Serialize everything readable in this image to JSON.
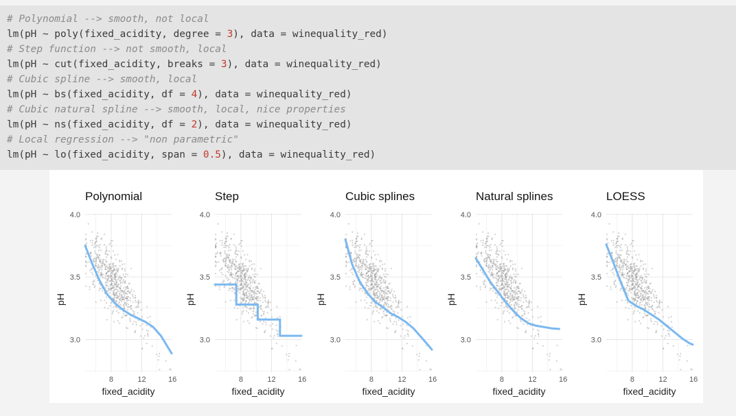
{
  "code_lines": [
    {
      "type": "comment",
      "parts": [
        "# Polynomial --> smooth, not local"
      ]
    },
    {
      "type": "code",
      "parts": [
        "lm(pH ~ poly(fixed_acidity, degree = ",
        "3",
        "), data = winequality_red)"
      ]
    },
    {
      "type": "comment",
      "parts": [
        "# Step function --> not smooth, local"
      ]
    },
    {
      "type": "code",
      "parts": [
        "lm(pH ~ cut(fixed_acidity, breaks = ",
        "3",
        "), data = winequality_red)"
      ]
    },
    {
      "type": "comment",
      "parts": [
        "# Cubic spline --> smooth, local"
      ]
    },
    {
      "type": "code",
      "parts": [
        "lm(pH ~ bs(fixed_acidity, df = ",
        "4",
        "), data = winequality_red)"
      ]
    },
    {
      "type": "comment",
      "parts": [
        "# Cubic natural spline --> smooth, local, nice properties"
      ]
    },
    {
      "type": "code",
      "parts": [
        "lm(pH ~ ns(fixed_acidity, df = ",
        "2",
        "), data = winequality_red)"
      ]
    },
    {
      "type": "comment",
      "parts": [
        "# Local regression --> \"non parametric\""
      ]
    },
    {
      "type": "code",
      "parts": [
        "lm(pH ~ lo(fixed_acidity, span = ",
        "0.5",
        "), data = winequality_red)"
      ]
    }
  ],
  "colors": {
    "fit_line": "#7ab8f0",
    "points": "#9a9a9a",
    "grid": "#e6e6e6",
    "code_bg": "#e4e4e4"
  },
  "chart_data": [
    {
      "type": "scatter",
      "title": "Polynomial",
      "xlabel": "fixed_acidity",
      "ylabel": "pH",
      "xlim": [
        4.6,
        15.9
      ],
      "ylim": [
        2.74,
        4.01
      ],
      "xticks": [
        "8",
        "12",
        "16"
      ],
      "yticks": [
        "3.0",
        "3.5",
        "4.0"
      ],
      "grid": true,
      "fit": {
        "x": [
          4.6,
          5.5,
          6.5,
          7.5,
          8.5,
          9.5,
          10.5,
          11.5,
          12.5,
          13.5,
          14.5,
          15.5,
          15.9
        ],
        "y": [
          3.75,
          3.61,
          3.47,
          3.36,
          3.29,
          3.24,
          3.2,
          3.17,
          3.14,
          3.1,
          3.03,
          2.93,
          2.89
        ]
      }
    },
    {
      "type": "scatter",
      "title": "Step",
      "xlabel": "fixed_acidity",
      "ylabel": "pH",
      "xlim": [
        4.6,
        15.9
      ],
      "ylim": [
        2.74,
        4.01
      ],
      "xticks": [
        "8",
        "12",
        "16"
      ],
      "yticks": [
        "3.0",
        "3.5",
        "4.0"
      ],
      "grid": true,
      "fit": {
        "x": [
          4.6,
          7.4,
          7.4,
          10.2,
          10.2,
          13.1,
          13.1,
          15.9
        ],
        "y": [
          3.44,
          3.44,
          3.28,
          3.28,
          3.16,
          3.16,
          3.03,
          3.03
        ]
      }
    },
    {
      "type": "scatter",
      "title": "Cubic splines",
      "xlabel": "fixed_acidity",
      "ylabel": "pH",
      "xlim": [
        4.6,
        15.9
      ],
      "ylim": [
        2.74,
        4.01
      ],
      "xticks": [
        "8",
        "12",
        "16"
      ],
      "yticks": [
        "3.0",
        "3.5",
        "4.0"
      ],
      "grid": true,
      "fit": {
        "x": [
          4.6,
          5.5,
          6.5,
          7.5,
          8.5,
          9.5,
          10.5,
          11.5,
          12.5,
          13.5,
          14.5,
          15.5,
          15.9
        ],
        "y": [
          3.8,
          3.6,
          3.46,
          3.37,
          3.3,
          3.26,
          3.21,
          3.18,
          3.14,
          3.09,
          3.02,
          2.95,
          2.92
        ]
      }
    },
    {
      "type": "scatter",
      "title": "Natural splines",
      "xlabel": "fixed_acidity",
      "ylabel": "pH",
      "xlim": [
        4.6,
        15.9
      ],
      "ylim": [
        2.74,
        4.01
      ],
      "xticks": [
        "8",
        "12",
        "16"
      ],
      "yticks": [
        "3.0",
        "3.5",
        "4.0"
      ],
      "grid": true,
      "fit": {
        "x": [
          4.6,
          5.5,
          6.5,
          7.5,
          8.5,
          9.5,
          10.5,
          11.5,
          12.5,
          13.5,
          14.5,
          15.5
        ],
        "y": [
          3.65,
          3.56,
          3.46,
          3.38,
          3.3,
          3.23,
          3.17,
          3.13,
          3.11,
          3.1,
          3.09,
          3.085
        ]
      }
    },
    {
      "type": "scatter",
      "title": "LOESS",
      "xlabel": "fixed_acidity",
      "ylabel": "pH",
      "xlim": [
        4.6,
        15.9
      ],
      "ylim": [
        2.74,
        4.01
      ],
      "xticks": [
        "8",
        "12",
        "16"
      ],
      "yticks": [
        "3.0",
        "3.5",
        "4.0"
      ],
      "grid": true,
      "fit": {
        "x": [
          4.6,
          5.5,
          6.5,
          7.5,
          8.5,
          9.5,
          10.5,
          11.5,
          12.5,
          13.5,
          14.5,
          15.5,
          15.9
        ],
        "y": [
          3.76,
          3.62,
          3.46,
          3.31,
          3.27,
          3.24,
          3.2,
          3.16,
          3.11,
          3.06,
          3.01,
          2.97,
          2.96
        ]
      }
    }
  ]
}
